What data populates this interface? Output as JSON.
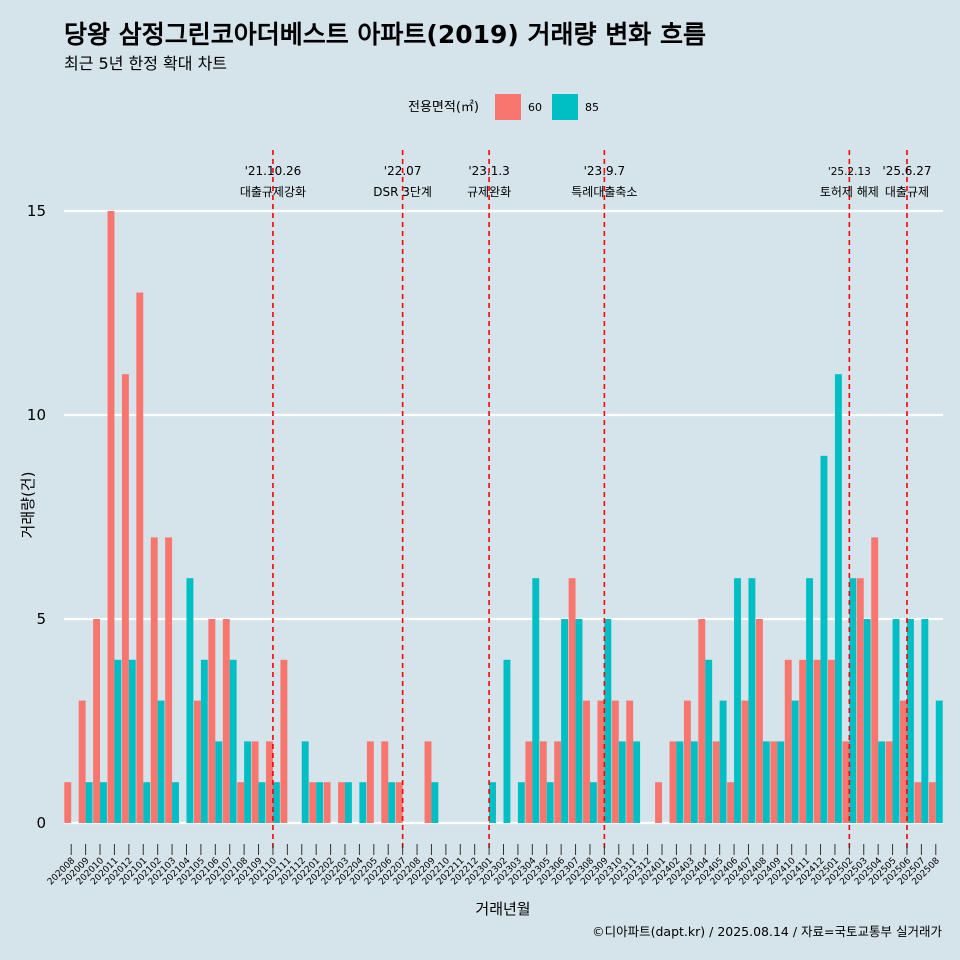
{
  "chart_data": {
    "type": "bar",
    "title": "당왕 삼정그린코아더베스트 아파트(2019) 거래량 변화 흐름",
    "subtitle": "최근 5년 한정 확대 차트",
    "xlabel": "거래년월",
    "ylabel": "거래량(건)",
    "ylim": [
      0,
      15
    ],
    "yticks": [
      0,
      5,
      10,
      15
    ],
    "legend": {
      "title": "전용면적(㎡)",
      "position": "top"
    },
    "categories": [
      "202008",
      "202009",
      "202010",
      "202011",
      "202012",
      "202101",
      "202102",
      "202103",
      "202104",
      "202105",
      "202106",
      "202107",
      "202108",
      "202109",
      "202110",
      "202111",
      "202112",
      "202201",
      "202202",
      "202203",
      "202204",
      "202205",
      "202206",
      "202207",
      "202208",
      "202209",
      "202210",
      "202211",
      "202212",
      "202301",
      "202302",
      "202303",
      "202304",
      "202305",
      "202306",
      "202307",
      "202308",
      "202309",
      "202310",
      "202311",
      "202312",
      "202401",
      "202402",
      "202403",
      "202404",
      "202405",
      "202406",
      "202407",
      "202408",
      "202409",
      "202410",
      "202411",
      "202412",
      "202501",
      "202502",
      "202503",
      "202504",
      "202505",
      "202506",
      "202507",
      "202508"
    ],
    "series": [
      {
        "name": "60",
        "color": "#f8766d",
        "values": [
          1,
          3,
          5,
          15,
          11,
          13,
          7,
          7,
          0,
          3,
          5,
          5,
          1,
          2,
          2,
          4,
          0,
          1,
          1,
          1,
          0,
          2,
          2,
          1,
          0,
          2,
          0,
          0,
          0,
          0,
          0,
          0,
          2,
          2,
          2,
          6,
          3,
          3,
          3,
          3,
          0,
          1,
          2,
          3,
          5,
          2,
          1,
          3,
          5,
          2,
          4,
          4,
          4,
          4,
          2,
          6,
          7,
          2,
          3,
          1,
          1
        ]
      },
      {
        "name": "85",
        "color": "#00bfc4",
        "values": [
          0,
          1,
          1,
          4,
          4,
          1,
          3,
          1,
          6,
          4,
          2,
          4,
          2,
          1,
          1,
          0,
          2,
          1,
          0,
          1,
          1,
          0,
          1,
          0,
          0,
          1,
          0,
          0,
          0,
          1,
          4,
          1,
          6,
          1,
          5,
          5,
          1,
          5,
          2,
          2,
          0,
          0,
          2,
          2,
          4,
          3,
          6,
          6,
          2,
          2,
          3,
          6,
          9,
          11,
          6,
          5,
          2,
          5,
          5,
          5,
          3
        ]
      }
    ],
    "annotations": [
      {
        "category": "202110",
        "date": "'21.10.26",
        "label": "대출규제강화"
      },
      {
        "category": "202207",
        "date": "'22.07",
        "label": "DSR 3단계"
      },
      {
        "category": "202301",
        "date": "'23.1.3",
        "label": "규제완화"
      },
      {
        "category": "202309",
        "date": "'23.9.7",
        "label": "특례대출축소"
      },
      {
        "category": "202502",
        "date": "'25.2.13",
        "label": "토허제 해제"
      },
      {
        "category": "202506",
        "date": "'25.6.27",
        "label": "대출규제"
      }
    ],
    "annotation_color": "#ff0000"
  },
  "caption": "©디아파트(dapt.kr) / 2025.08.14 / 자료=국토교통부 실거래가",
  "colors": {
    "background": "#d5e3ea",
    "grid": "#ffffff"
  }
}
